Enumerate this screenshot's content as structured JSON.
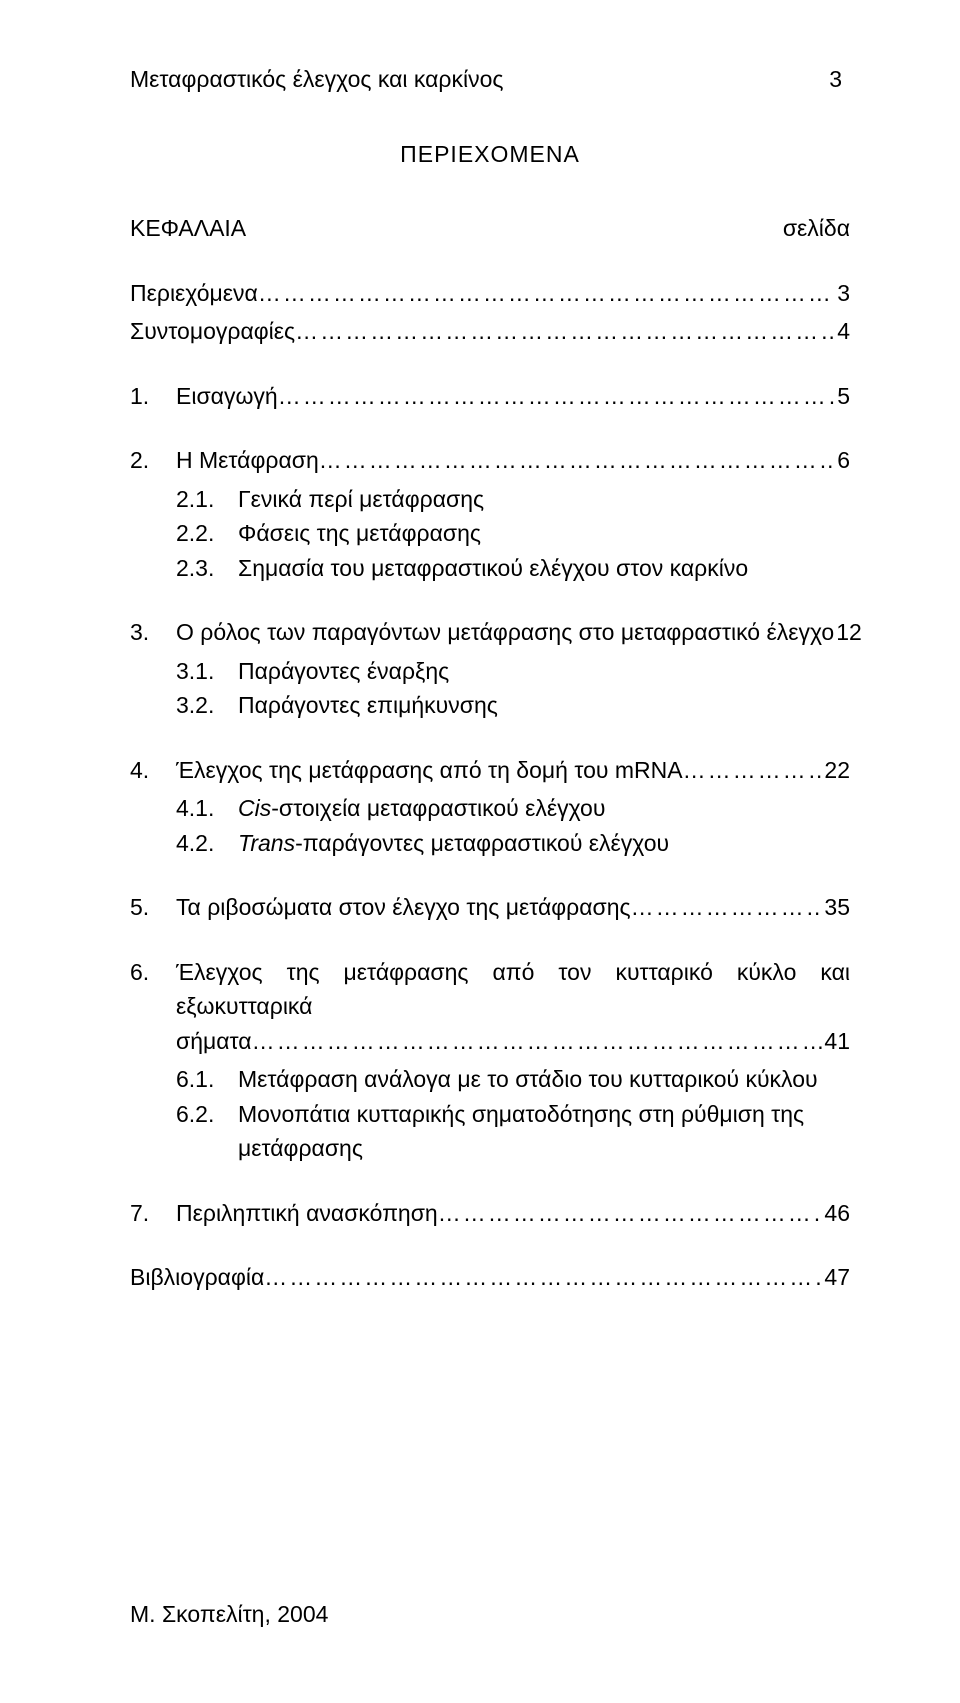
{
  "header": {
    "running_title": "Μεταφραστικός έλεγχος και καρκίνος",
    "page_num": "3"
  },
  "title": "ΠΕΡΙΕΧΟΜΕΝΑ",
  "columns": {
    "left": "ΚΕΦΑΛΑΙΑ",
    "right": "σελίδα"
  },
  "toc": {
    "perix": {
      "label": "Περιεχόμενα",
      "page": "3"
    },
    "syntom": {
      "label": "Συντομογραφίες",
      "page": "4"
    },
    "i1": {
      "num": "1.",
      "label": "Εισαγωγή",
      "page": "5"
    },
    "i2": {
      "num": "2.",
      "label": "Η Μετάφραση",
      "page": "6"
    },
    "i2_1": {
      "num": "2.1.",
      "label": "Γενικά περί μετάφρασης"
    },
    "i2_2": {
      "num": "2.2.",
      "label": "Φάσεις της μετάφρασης"
    },
    "i2_3": {
      "num": "2.3.",
      "label": "Σημασία του μεταφραστικού ελέγχου στον καρκίνο"
    },
    "i3": {
      "num": "3.",
      "label": "Ο ρόλος των παραγόντων μετάφρασης στο μεταφραστικό έλεγχο",
      "page": "12"
    },
    "i3_1": {
      "num": "3.1.",
      "label": "Παράγοντες έναρξης"
    },
    "i3_2": {
      "num": "3.2.",
      "label": "Παράγοντες επιμήκυνσης"
    },
    "i4": {
      "num": "4.",
      "label": "Έλεγχος της μετάφρασης από τη δομή του mRNA",
      "page": "22"
    },
    "i4_1": {
      "num": "4.1.",
      "label_pre": "Cis",
      "label_post": "-στοιχεία μεταφραστικού ελέγχου"
    },
    "i4_2": {
      "num": "4.2.",
      "label_pre": "Trans",
      "label_post": "-παράγοντες μεταφραστικού ελέγχου"
    },
    "i5": {
      "num": "5.",
      "label": "Τα ριβοσώματα στον έλεγχο της μετάφρασης",
      "page": "35"
    },
    "i6": {
      "num": "6.",
      "label_a": "Έλεγχος της μετάφρασης από τον κυτταρικό κύκλο και εξωκυτταρικά",
      "label_b": "σήματα",
      "page": "41"
    },
    "i6_1": {
      "num": "6.1.",
      "label": "Μετάφραση ανάλογα με το στάδιο του κυτταρικού κύκλου"
    },
    "i6_2": {
      "num": "6.2.",
      "label": "Μονοπάτια κυτταρικής σηματοδότησης στη ρύθμιση της μετάφρασης"
    },
    "i7": {
      "num": "7.",
      "label": "Περιληπτική ανασκόπηση",
      "page": "46"
    },
    "biblio": {
      "label": "Βιβλιογραφία",
      "page": "47"
    }
  },
  "footer": "Μ. Σκοπελίτη, 2004",
  "style": {
    "dots": "……………………………………………………………………………………………………………………………………………………"
  }
}
